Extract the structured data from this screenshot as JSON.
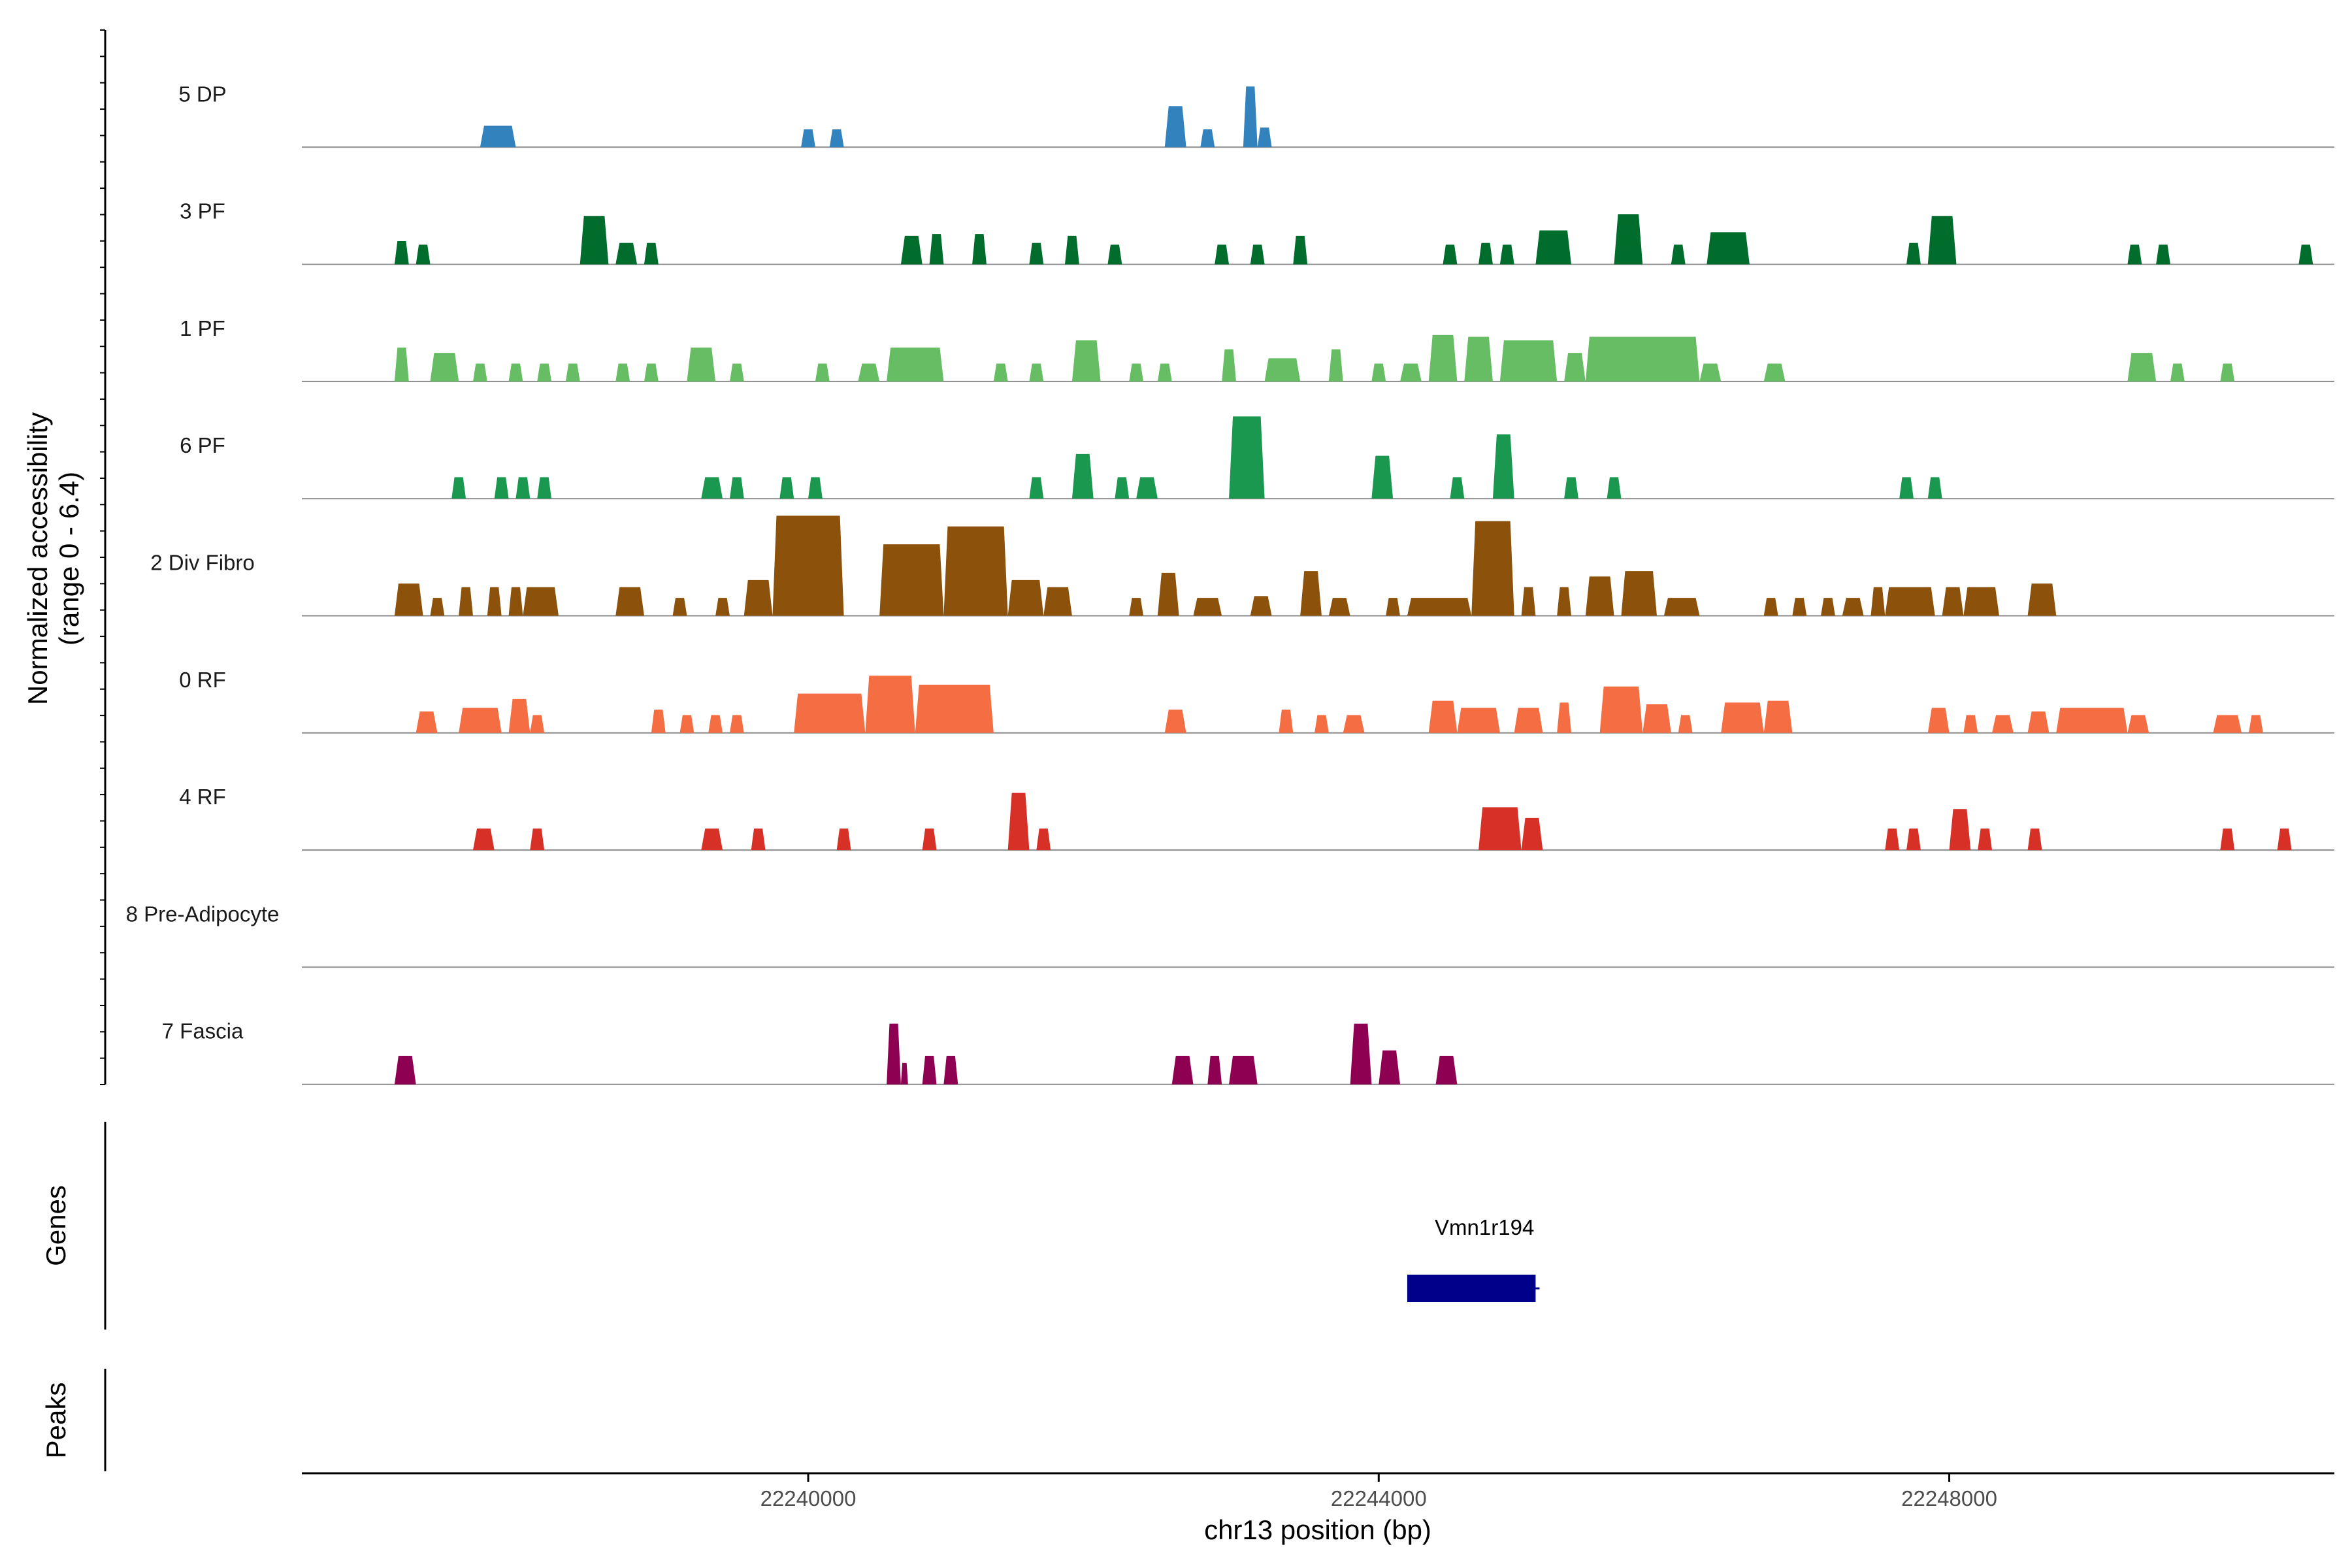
{
  "chart_data": {
    "type": "area",
    "title": "",
    "ylabel_line1": "Normalized accessibility",
    "ylabel_line2": "(range 0 - 6.4)",
    "xlabel": "chr13 position (bp)",
    "xlim": [
      22236450,
      22250700
    ],
    "ylim": [
      0,
      6.4
    ],
    "x_ticks": [
      22240000,
      22244000,
      22248000
    ],
    "x_tick_labels": [
      "22240000",
      "22244000",
      "22248000"
    ],
    "genes_panel_label": "Genes",
    "peaks_panel_label": "Peaks",
    "genes": [
      {
        "name": "Vmn1r194",
        "start": 22244200,
        "end": 22245100,
        "strand": "+",
        "color": "#00008B"
      }
    ],
    "tracks": [
      {
        "name": "5 DP",
        "color": "#3182BD",
        "peaks": [
          [
            22237700,
            22237950,
            1.2
          ],
          [
            22239950,
            22240050,
            1.0
          ],
          [
            22240150,
            22240250,
            1.0
          ],
          [
            22242500,
            22242650,
            2.3
          ],
          [
            22242750,
            22242850,
            1.0
          ],
          [
            22243050,
            22243150,
            3.4
          ],
          [
            22243150,
            22243250,
            1.1
          ]
        ]
      },
      {
        "name": "3 PF",
        "color": "#006D2C",
        "peaks": [
          [
            22237100,
            22237200,
            1.3
          ],
          [
            22237250,
            22237350,
            1.1
          ],
          [
            22238400,
            22238600,
            2.7
          ],
          [
            22238650,
            22238800,
            1.2
          ],
          [
            22238850,
            22238950,
            1.2
          ],
          [
            22240650,
            22240800,
            1.6
          ],
          [
            22240850,
            22240950,
            1.7
          ],
          [
            22241150,
            22241250,
            1.7
          ],
          [
            22241550,
            22241650,
            1.2
          ],
          [
            22241800,
            22241900,
            1.6
          ],
          [
            22242100,
            22242200,
            1.1
          ],
          [
            22242850,
            22242950,
            1.1
          ],
          [
            22243100,
            22243200,
            1.1
          ],
          [
            22243400,
            22243500,
            1.6
          ],
          [
            22244450,
            22244550,
            1.1
          ],
          [
            22244700,
            22244800,
            1.2
          ],
          [
            22244850,
            22244950,
            1.1
          ],
          [
            22245100,
            22245350,
            1.9
          ],
          [
            22245650,
            22245850,
            2.8
          ],
          [
            22246050,
            22246150,
            1.1
          ],
          [
            22246300,
            22246600,
            1.8
          ],
          [
            22247700,
            22247800,
            1.2
          ],
          [
            22247850,
            22248050,
            2.7
          ],
          [
            22249250,
            22249350,
            1.1
          ],
          [
            22249450,
            22249550,
            1.1
          ],
          [
            22250450,
            22250550,
            1.1
          ]
        ]
      },
      {
        "name": "1 PF",
        "color": "#66BD63",
        "peaks": [
          [
            22237100,
            22237200,
            1.9
          ],
          [
            22237350,
            22237550,
            1.6
          ],
          [
            22237650,
            22237750,
            1.0
          ],
          [
            22237900,
            22238000,
            1.0
          ],
          [
            22238100,
            22238200,
            1.0
          ],
          [
            22238300,
            22238400,
            1.0
          ],
          [
            22238650,
            22238750,
            1.0
          ],
          [
            22238850,
            22238950,
            1.0
          ],
          [
            22239150,
            22239350,
            1.9
          ],
          [
            22239450,
            22239550,
            1.0
          ],
          [
            22240050,
            22240150,
            1.0
          ],
          [
            22240350,
            22240500,
            1.0
          ],
          [
            22240550,
            22240950,
            1.9
          ],
          [
            22241300,
            22241400,
            1.0
          ],
          [
            22241550,
            22241650,
            1.0
          ],
          [
            22241850,
            22242050,
            2.3
          ],
          [
            22242250,
            22242350,
            1.0
          ],
          [
            22242450,
            22242550,
            1.0
          ],
          [
            22242900,
            22243000,
            1.8
          ],
          [
            22243200,
            22243450,
            1.3
          ],
          [
            22243650,
            22243750,
            1.8
          ],
          [
            22243950,
            22244050,
            1.0
          ],
          [
            22244150,
            22244300,
            1.0
          ],
          [
            22244350,
            22244550,
            2.6
          ],
          [
            22244600,
            22244800,
            2.5
          ],
          [
            22244850,
            22245250,
            2.3
          ],
          [
            22245300,
            22245450,
            1.6
          ],
          [
            22245450,
            22246250,
            2.5
          ],
          [
            22246250,
            22246400,
            1.0
          ],
          [
            22246700,
            22246850,
            1.0
          ],
          [
            22249250,
            22249450,
            1.6
          ],
          [
            22249550,
            22249650,
            1.0
          ],
          [
            22249900,
            22250000,
            1.0
          ]
        ]
      },
      {
        "name": "6 PF",
        "color": "#1A9850",
        "peaks": [
          [
            22237500,
            22237600,
            1.2
          ],
          [
            22237800,
            22237900,
            1.2
          ],
          [
            22237950,
            22238050,
            1.2
          ],
          [
            22238100,
            22238200,
            1.2
          ],
          [
            22239250,
            22239400,
            1.2
          ],
          [
            22239450,
            22239550,
            1.2
          ],
          [
            22239800,
            22239900,
            1.2
          ],
          [
            22240000,
            22240100,
            1.2
          ],
          [
            22241550,
            22241650,
            1.2
          ],
          [
            22241850,
            22242000,
            2.5
          ],
          [
            22242150,
            22242250,
            1.2
          ],
          [
            22242300,
            22242450,
            1.2
          ],
          [
            22242950,
            22243200,
            4.6
          ],
          [
            22243950,
            22244100,
            2.4
          ],
          [
            22244500,
            22244600,
            1.2
          ],
          [
            22244800,
            22244950,
            3.6
          ],
          [
            22245300,
            22245400,
            1.2
          ],
          [
            22245600,
            22245700,
            1.2
          ],
          [
            22247650,
            22247750,
            1.2
          ],
          [
            22247850,
            22247950,
            1.2
          ]
        ]
      },
      {
        "name": "2 Div Fibro",
        "color": "#8C510A",
        "peaks": [
          [
            22237100,
            22237300,
            1.8
          ],
          [
            22237350,
            22237450,
            1.0
          ],
          [
            22237550,
            22237650,
            1.6
          ],
          [
            22237750,
            22237850,
            1.6
          ],
          [
            22237900,
            22238000,
            1.6
          ],
          [
            22238000,
            22238250,
            1.6
          ],
          [
            22238650,
            22238850,
            1.6
          ],
          [
            22239050,
            22239150,
            1.0
          ],
          [
            22239350,
            22239450,
            1.0
          ],
          [
            22239550,
            22239750,
            2.0
          ],
          [
            22239750,
            22240250,
            5.6
          ],
          [
            22240500,
            22240950,
            4.0
          ],
          [
            22240950,
            22241400,
            5.0
          ],
          [
            22241400,
            22241650,
            2.0
          ],
          [
            22241650,
            22241850,
            1.6
          ],
          [
            22242250,
            22242350,
            1.0
          ],
          [
            22242450,
            22242600,
            2.4
          ],
          [
            22242700,
            22242900,
            1.0
          ],
          [
            22243100,
            22243250,
            1.1
          ],
          [
            22243450,
            22243600,
            2.5
          ],
          [
            22243650,
            22243800,
            1.0
          ],
          [
            22244050,
            22244150,
            1.0
          ],
          [
            22244200,
            22244650,
            1.0
          ],
          [
            22244650,
            22244950,
            5.3
          ],
          [
            22245000,
            22245100,
            1.6
          ],
          [
            22245250,
            22245350,
            1.6
          ],
          [
            22245450,
            22245650,
            2.2
          ],
          [
            22245700,
            22245950,
            2.5
          ],
          [
            22246000,
            22246250,
            1.0
          ],
          [
            22246700,
            22246800,
            1.0
          ],
          [
            22246900,
            22247000,
            1.0
          ],
          [
            22247100,
            22247200,
            1.0
          ],
          [
            22247250,
            22247400,
            1.0
          ],
          [
            22247450,
            22247550,
            1.6
          ],
          [
            22247550,
            22247900,
            1.6
          ],
          [
            22247950,
            22248100,
            1.6
          ],
          [
            22248100,
            22248350,
            1.6
          ],
          [
            22248550,
            22248750,
            1.8
          ]
        ]
      },
      {
        "name": "0 RF",
        "color": "#F46D43",
        "peaks": [
          [
            22237250,
            22237400,
            1.2
          ],
          [
            22237550,
            22237850,
            1.4
          ],
          [
            22237900,
            22238050,
            1.9
          ],
          [
            22238050,
            22238150,
            1.0
          ],
          [
            22238900,
            22239000,
            1.3
          ],
          [
            22239100,
            22239200,
            1.0
          ],
          [
            22239300,
            22239400,
            1.0
          ],
          [
            22239450,
            22239550,
            1.0
          ],
          [
            22239900,
            22240400,
            2.2
          ],
          [
            22240400,
            22240750,
            3.2
          ],
          [
            22240750,
            22241300,
            2.7
          ],
          [
            22242500,
            22242650,
            1.3
          ],
          [
            22243300,
            22243400,
            1.3
          ],
          [
            22243550,
            22243650,
            1.0
          ],
          [
            22243750,
            22243900,
            1.0
          ],
          [
            22244350,
            22244550,
            1.8
          ],
          [
            22244550,
            22244850,
            1.4
          ],
          [
            22244950,
            22245150,
            1.4
          ],
          [
            22245250,
            22245350,
            1.7
          ],
          [
            22245550,
            22245850,
            2.6
          ],
          [
            22245850,
            22246050,
            1.6
          ],
          [
            22246100,
            22246200,
            1.0
          ],
          [
            22246400,
            22246700,
            1.7
          ],
          [
            22246700,
            22246900,
            1.8
          ],
          [
            22247850,
            22248000,
            1.4
          ],
          [
            22248100,
            22248200,
            1.0
          ],
          [
            22248300,
            22248450,
            1.0
          ],
          [
            22248550,
            22248700,
            1.2
          ],
          [
            22248750,
            22249250,
            1.4
          ],
          [
            22249250,
            22249400,
            1.0
          ],
          [
            22249850,
            22250050,
            1.0
          ],
          [
            22250100,
            22250200,
            1.0
          ]
        ]
      },
      {
        "name": "4 RF",
        "color": "#D73027",
        "peaks": [
          [
            22237650,
            22237800,
            1.2
          ],
          [
            22238050,
            22238150,
            1.2
          ],
          [
            22239250,
            22239400,
            1.2
          ],
          [
            22239600,
            22239700,
            1.2
          ],
          [
            22240200,
            22240300,
            1.2
          ],
          [
            22240800,
            22240900,
            1.2
          ],
          [
            22241400,
            22241550,
            3.2
          ],
          [
            22241600,
            22241700,
            1.2
          ],
          [
            22244700,
            22245000,
            2.4
          ],
          [
            22245000,
            22245150,
            1.8
          ],
          [
            22247550,
            22247650,
            1.2
          ],
          [
            22247700,
            22247800,
            1.2
          ],
          [
            22248000,
            22248150,
            2.3
          ],
          [
            22248200,
            22248300,
            1.2
          ],
          [
            22248550,
            22248650,
            1.2
          ],
          [
            22249900,
            22250000,
            1.2
          ],
          [
            22250300,
            22250400,
            1.2
          ]
        ]
      },
      {
        "name": "8 Pre-Adipocyte",
        "color": "#7A7A7A",
        "peaks": []
      },
      {
        "name": "7 Fascia",
        "color": "#8E0152",
        "peaks": [
          [
            22237100,
            22237250,
            1.6
          ],
          [
            22240550,
            22240650,
            3.4
          ],
          [
            22240650,
            22240700,
            1.2
          ],
          [
            22240800,
            22240900,
            1.6
          ],
          [
            22240950,
            22241050,
            1.6
          ],
          [
            22242550,
            22242700,
            1.6
          ],
          [
            22242800,
            22242900,
            1.6
          ],
          [
            22242950,
            22243150,
            1.6
          ],
          [
            22243800,
            22243950,
            3.4
          ],
          [
            22244000,
            22244150,
            1.9
          ],
          [
            22244400,
            22244550,
            1.6
          ]
        ]
      }
    ]
  }
}
